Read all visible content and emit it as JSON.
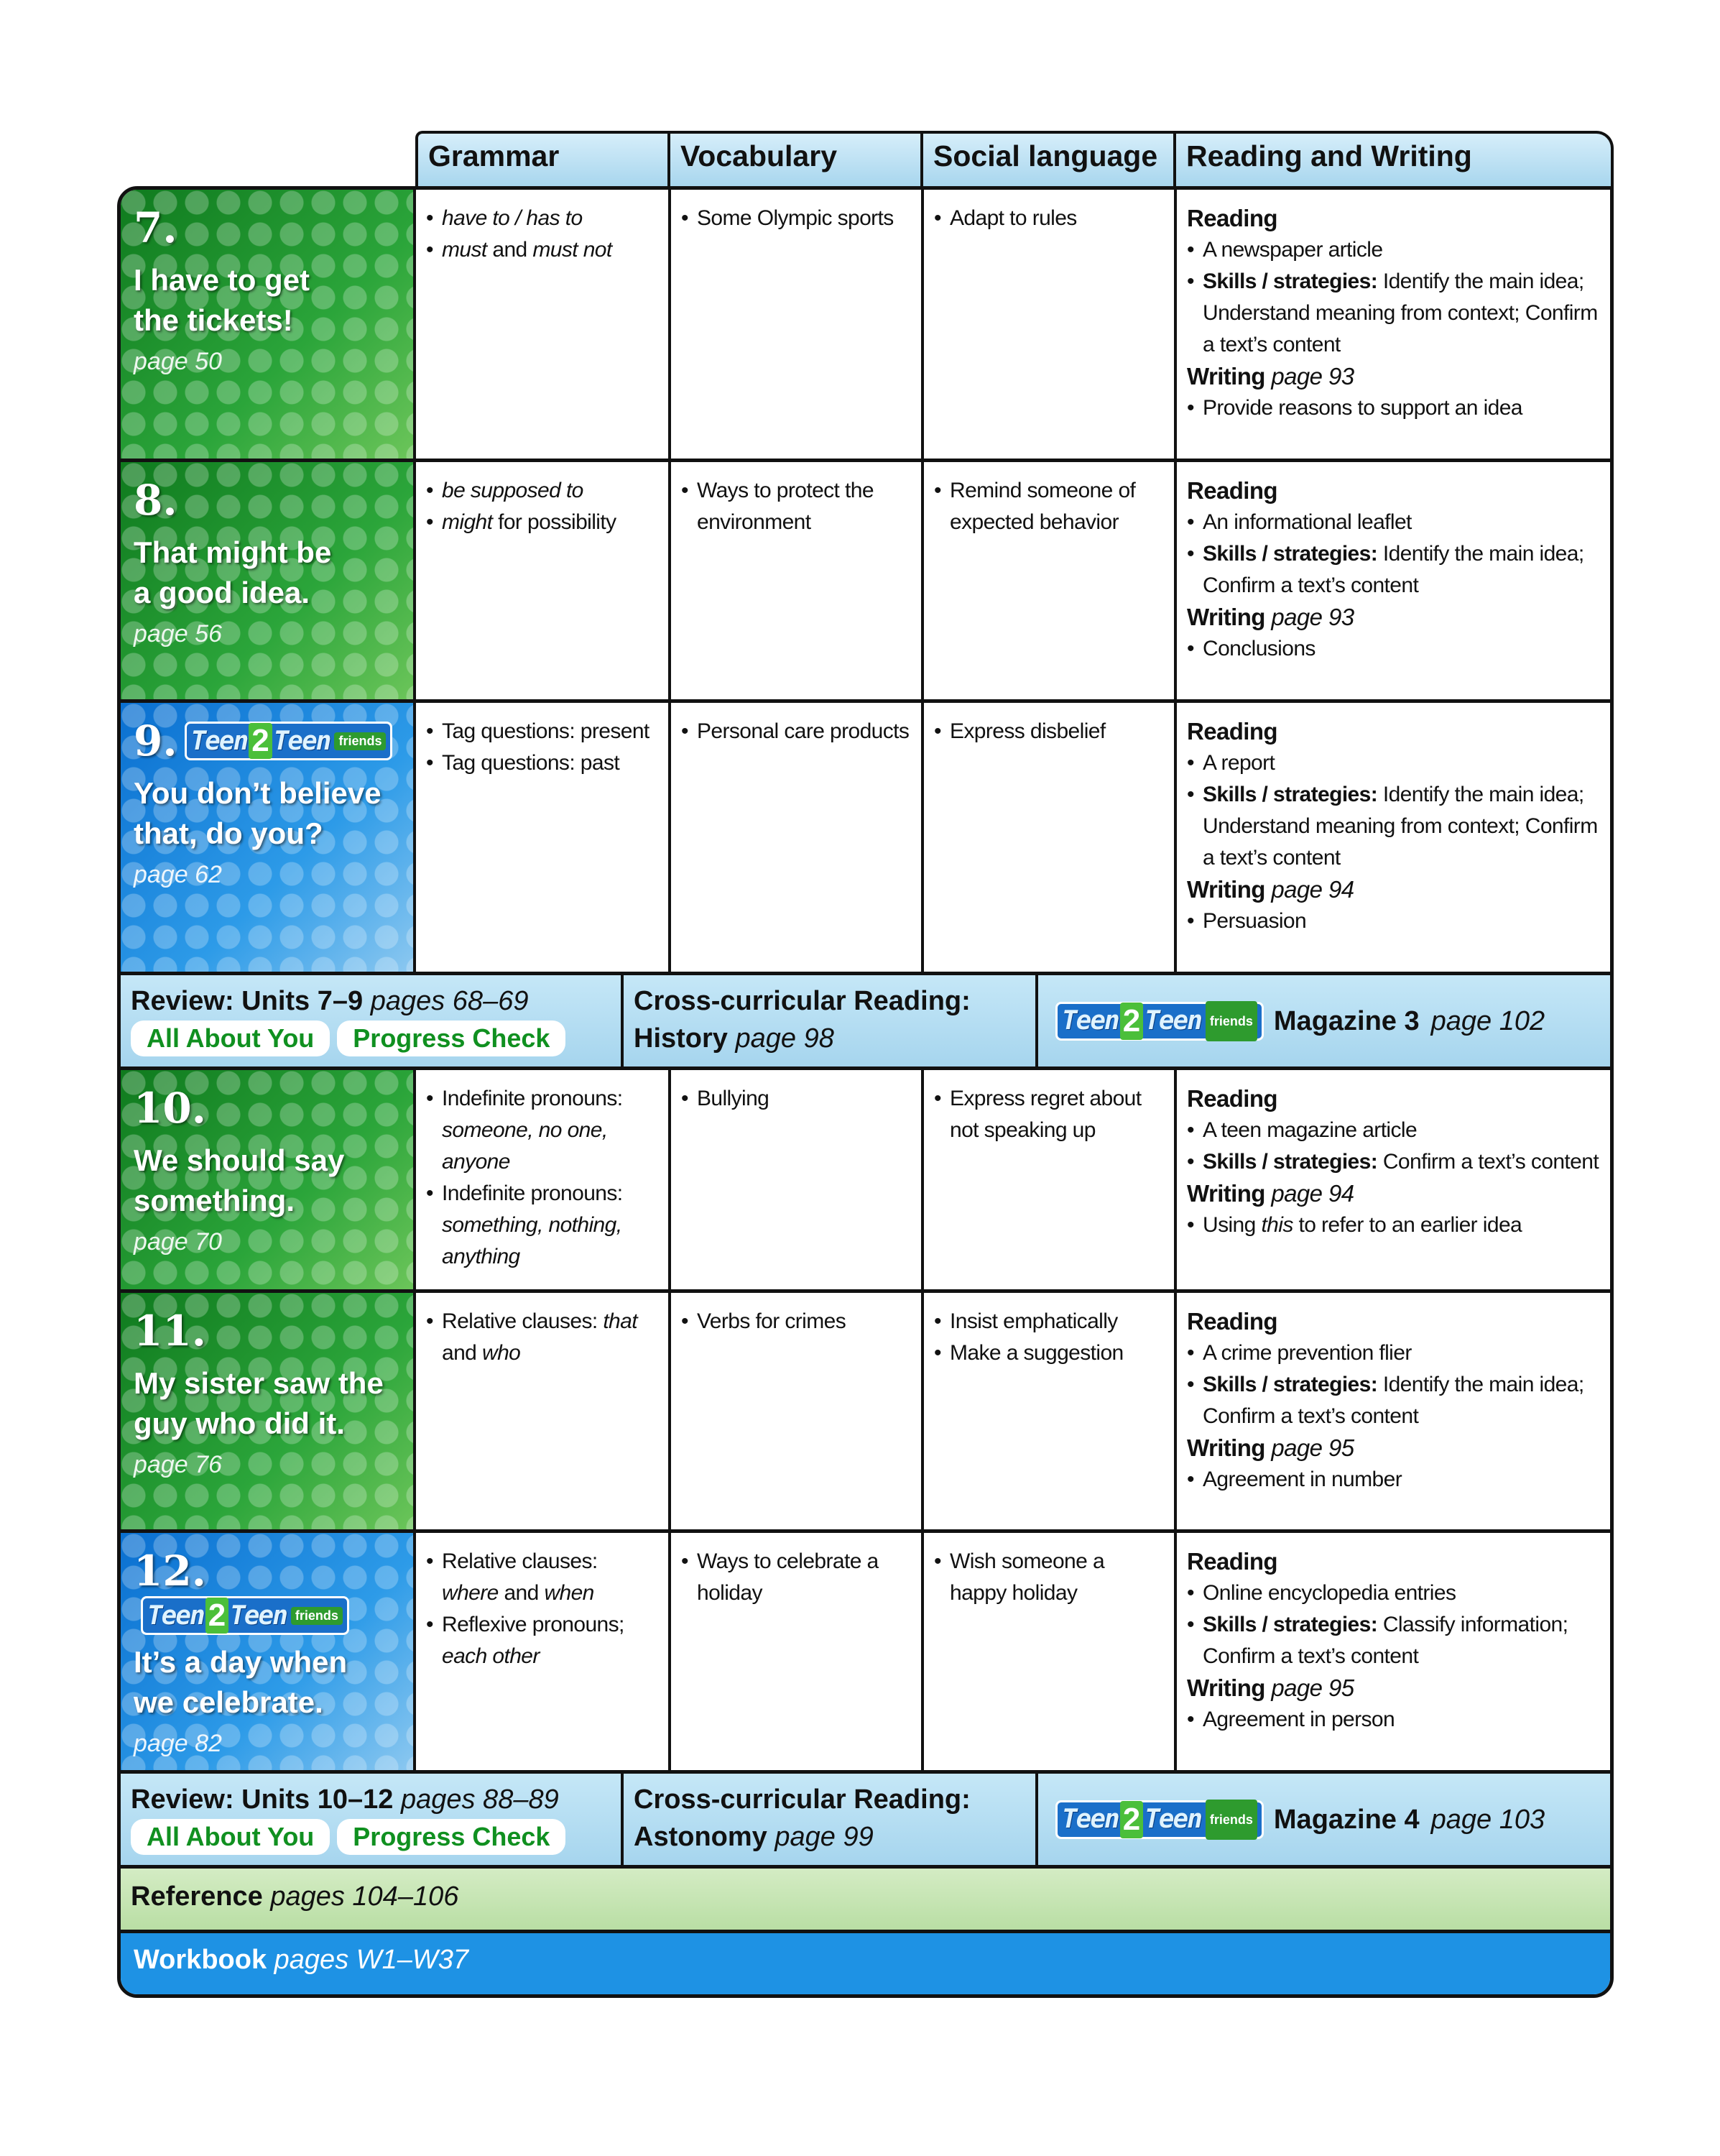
{
  "headers": [
    "Grammar",
    "Vocabulary",
    "Social language",
    "Reading and Writing"
  ],
  "logo": {
    "a": "Teen",
    "two": "2",
    "b": "Teen",
    "friends": "friends"
  },
  "units": [
    {
      "num": "7.",
      "title_lines": [
        "I have to get",
        "the tickets!"
      ],
      "page": "page 50",
      "color": "green",
      "logo": false,
      "grammar": [
        [
          {
            "t": "have to / has to",
            "s": "i"
          }
        ],
        [
          {
            "t": "must",
            "s": "i"
          },
          {
            "t": " and "
          },
          {
            "t": "must not",
            "s": "i"
          }
        ]
      ],
      "vocabulary": [
        [
          {
            "t": "Some Olympic sports"
          }
        ]
      ],
      "social": [
        [
          {
            "t": "Adapt to rules"
          }
        ]
      ],
      "reading": {
        "label": "Reading",
        "items": [
          [
            {
              "t": "A newspaper article"
            }
          ],
          [
            {
              "t": "Skills / strategies:",
              "s": "b"
            },
            {
              "t": " Identify the main idea; Understand meaning from context; Confirm a text’s content"
            }
          ]
        ],
        "writing_label": "Writing",
        "writing_page": "page 93",
        "writing_items": [
          [
            {
              "t": "Provide reasons to support an idea"
            }
          ]
        ]
      }
    },
    {
      "num": "8.",
      "title_lines": [
        "That might be",
        "a good idea."
      ],
      "page": "page 56",
      "color": "green",
      "logo": false,
      "grammar": [
        [
          {
            "t": "be supposed to",
            "s": "i"
          }
        ],
        [
          {
            "t": "might",
            "s": "i"
          },
          {
            "t": " for possibility"
          }
        ]
      ],
      "vocabulary": [
        [
          {
            "t": "Ways to protect the environment"
          }
        ]
      ],
      "social": [
        [
          {
            "t": "Remind someone of expected behavior"
          }
        ]
      ],
      "reading": {
        "label": "Reading",
        "items": [
          [
            {
              "t": "An informational leaflet"
            }
          ],
          [
            {
              "t": "Skills / strategies:",
              "s": "b"
            },
            {
              "t": " Identify the main idea; Confirm a text’s content"
            }
          ]
        ],
        "writing_label": "Writing",
        "writing_page": "page 93",
        "writing_items": [
          [
            {
              "t": "Conclusions"
            }
          ]
        ]
      }
    },
    {
      "num": "9.",
      "title_lines": [
        "You don’t believe",
        "that, do you?"
      ],
      "page": "page 62",
      "color": "blue",
      "logo": true,
      "grammar": [
        [
          {
            "t": "Tag questions: present"
          }
        ],
        [
          {
            "t": "Tag questions: past"
          }
        ]
      ],
      "vocabulary": [
        [
          {
            "t": "Personal care products"
          }
        ]
      ],
      "social": [
        [
          {
            "t": "Express disbelief"
          }
        ]
      ],
      "reading": {
        "label": "Reading",
        "items": [
          [
            {
              "t": "A report"
            }
          ],
          [
            {
              "t": "Skills / strategies:",
              "s": "b"
            },
            {
              "t": " Identify the main idea; Understand meaning from context; Confirm a text’s content"
            }
          ]
        ],
        "writing_label": "Writing",
        "writing_page": "page 94",
        "writing_items": [
          [
            {
              "t": "Persuasion"
            }
          ]
        ]
      }
    },
    {
      "num": "10.",
      "title_lines": [
        "We should say",
        "something."
      ],
      "page": "page 70",
      "color": "green",
      "logo": false,
      "grammar": [
        [
          {
            "t": "Indefinite pronouns: "
          },
          {
            "t": "someone, no one, anyone",
            "s": "i"
          }
        ],
        [
          {
            "t": "Indefinite pronouns: "
          },
          {
            "t": "something, nothing, anything",
            "s": "i"
          }
        ]
      ],
      "vocabulary": [
        [
          {
            "t": "Bullying"
          }
        ]
      ],
      "social": [
        [
          {
            "t": "Express regret about not speaking up"
          }
        ]
      ],
      "reading": {
        "label": "Reading",
        "items": [
          [
            {
              "t": "A teen magazine article"
            }
          ],
          [
            {
              "t": "Skills / strategies:",
              "s": "b"
            },
            {
              "t": " Confirm a text’s content"
            }
          ]
        ],
        "writing_label": "Writing",
        "writing_page": "page 94",
        "writing_items": [
          [
            {
              "t": "Using "
            },
            {
              "t": "this",
              "s": "i"
            },
            {
              "t": " to refer to an earlier idea"
            }
          ]
        ]
      }
    },
    {
      "num": "11.",
      "title_lines": [
        "My sister saw the",
        "guy who did it."
      ],
      "page": "page 76",
      "color": "green",
      "logo": false,
      "grammar": [
        [
          {
            "t": "Relative clauses: "
          },
          {
            "t": "that",
            "s": "i"
          },
          {
            "t": " and "
          },
          {
            "t": "who",
            "s": "i"
          }
        ]
      ],
      "vocabulary": [
        [
          {
            "t": "Verbs for crimes"
          }
        ]
      ],
      "social": [
        [
          {
            "t": "Insist emphatically"
          }
        ],
        [
          {
            "t": "Make a suggestion"
          }
        ]
      ],
      "reading": {
        "label": "Reading",
        "items": [
          [
            {
              "t": "A crime prevention flier"
            }
          ],
          [
            {
              "t": "Skills / strategies:",
              "s": "b"
            },
            {
              "t": " Identify the main idea; Confirm a text’s content"
            }
          ]
        ],
        "writing_label": "Writing",
        "writing_page": "page 95",
        "writing_items": [
          [
            {
              "t": "Agreement in number"
            }
          ]
        ]
      }
    },
    {
      "num": "12.",
      "title_lines": [
        "It’s a day when",
        "we celebrate."
      ],
      "page": "page 82",
      "color": "blue",
      "logo": true,
      "grammar": [
        [
          {
            "t": "Relative clauses: "
          },
          {
            "t": "where",
            "s": "i"
          },
          {
            "t": " and "
          },
          {
            "t": "when",
            "s": "i"
          }
        ],
        [
          {
            "t": "Reflexive pronouns; "
          },
          {
            "t": "each other",
            "s": "i"
          }
        ]
      ],
      "vocabulary": [
        [
          {
            "t": "Ways to celebrate a holiday"
          }
        ]
      ],
      "social": [
        [
          {
            "t": "Wish someone a happy holiday"
          }
        ]
      ],
      "reading": {
        "label": "Reading",
        "items": [
          [
            {
              "t": "Online encyclopedia entries"
            }
          ],
          [
            {
              "t": "Skills / strategies:",
              "s": "b"
            },
            {
              "t": " Classify information; Confirm a text’s content"
            }
          ]
        ],
        "writing_label": "Writing",
        "writing_page": "page 95",
        "writing_items": [
          [
            {
              "t": "Agreement in person"
            }
          ]
        ]
      }
    }
  ],
  "reviews": [
    {
      "after_unit": 2,
      "title": "Review: Units 7–9",
      "pages": "pages 68–69",
      "pill1": "All About You",
      "pill2": "Progress Check",
      "cross_title": "Cross-curricular Reading:",
      "cross_subject": "History",
      "cross_page": "page 98",
      "magazine": "Magazine 3",
      "magazine_page": "page 102"
    },
    {
      "after_unit": 5,
      "title": "Review: Units 10–12",
      "pages": "pages 88–89",
      "pill1": "All About You",
      "pill2": "Progress Check",
      "cross_title": "Cross-curricular Reading:",
      "cross_subject": "Astonomy",
      "cross_page": "page 99",
      "magazine": "Magazine 4",
      "magazine_page": "page 103"
    }
  ],
  "reference": {
    "label": "Reference",
    "pages": "pages 104–106"
  },
  "workbook": {
    "label": "Workbook",
    "pages": "pages W1–W37"
  },
  "colors": {
    "green": "#2ba53a",
    "blue": "#2d9be8",
    "header": "#bfe3f3",
    "reference": "#c8e6b4",
    "workbook": "#1e92e4"
  }
}
